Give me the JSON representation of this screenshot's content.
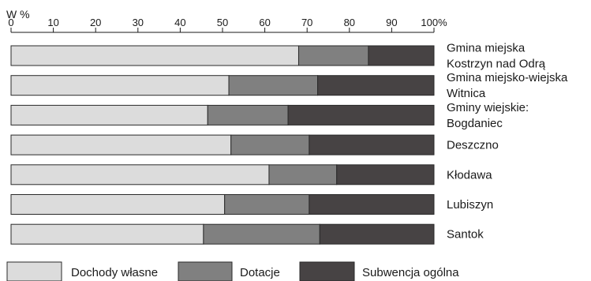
{
  "chart_data": {
    "type": "bar",
    "stacked": true,
    "orientation": "horizontal",
    "unit_label": "W %",
    "xlim": [
      0,
      100
    ],
    "ticks": [
      "0",
      "10",
      "20",
      "30",
      "40",
      "50",
      "60",
      "70",
      "80",
      "90",
      "100%"
    ],
    "tick_values": [
      0,
      10,
      20,
      30,
      40,
      50,
      60,
      70,
      80,
      90,
      100
    ],
    "categories": [
      [
        "Gmina miejska",
        "Kostrzyn nad Odrą"
      ],
      [
        "Gmina miejsko-wiejska",
        "Witnica"
      ],
      [
        "Gminy wiejskie:",
        "Bogdaniec"
      ],
      [
        "Deszczno"
      ],
      [
        "Kłodawa"
      ],
      [
        "Lubiszyn"
      ],
      [
        "Santok"
      ]
    ],
    "series": [
      {
        "name": "Dochody własne",
        "color": "#dcdcdc",
        "values": [
          68,
          51.5,
          46.5,
          52,
          61,
          50.5,
          45.5
        ]
      },
      {
        "name": "Dotacje",
        "color": "#808080",
        "values": [
          16.5,
          21,
          19,
          18.5,
          16,
          20,
          27.5
        ]
      },
      {
        "name": "Subwencja ogólna",
        "color": "#474344",
        "values": [
          15.5,
          27.5,
          34.5,
          29.5,
          23,
          29.5,
          27
        ]
      }
    ],
    "legend_position": "bottom",
    "grid": false
  }
}
